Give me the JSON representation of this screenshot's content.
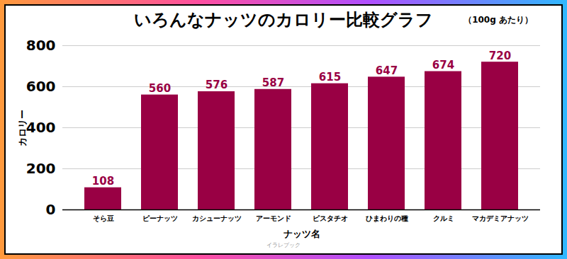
{
  "chart_data": {
    "type": "bar",
    "title": "いろんなナッツのカロリー比較グラフ",
    "subtitle": "（100g あたり）",
    "caption": "イラレブック",
    "x_label": "ナッツ名",
    "y_label": "カロリー",
    "categories": [
      "そら豆",
      "ピーナッツ",
      "カシューナッツ",
      "アーモンド",
      "ピスタチオ",
      "ひまわりの種",
      "クルミ",
      "マカデミアナッツ"
    ],
    "values": [
      108,
      560,
      576,
      587,
      615,
      647,
      674,
      720
    ],
    "color": "#990044",
    "ylim": [
      0,
      800
    ],
    "yticks": [
      0,
      200,
      400,
      600,
      800
    ],
    "grid": true,
    "data_labels": true
  }
}
